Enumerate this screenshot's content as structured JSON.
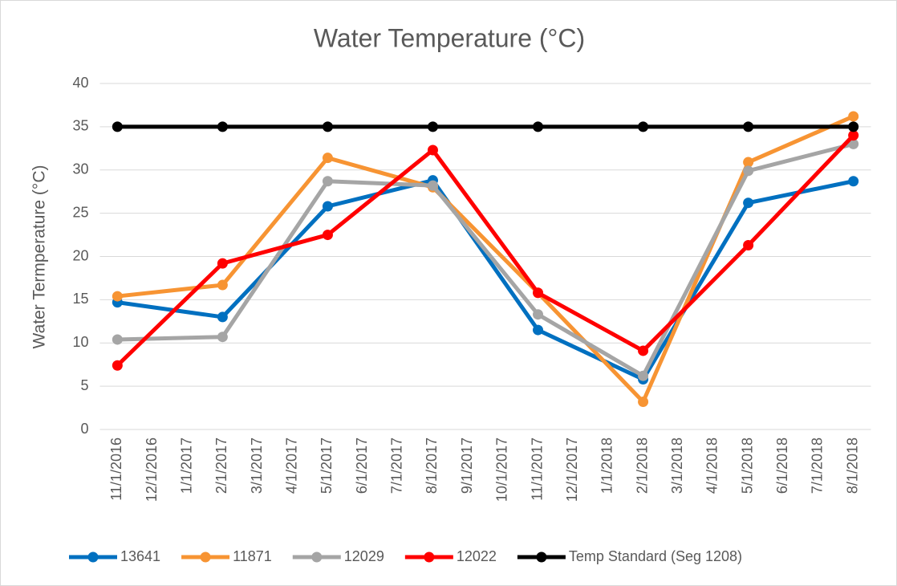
{
  "chart_data": {
    "type": "line",
    "title": "Water Temperature  (°C)",
    "y_label": "Water Termperature (°C)",
    "categories": [
      "11/1/2016",
      "12/1/2016",
      "1/1/2017",
      "2/1/2017",
      "3/1/2017",
      "4/1/2017",
      "5/1/2017",
      "6/1/2017",
      "7/1/2017",
      "8/1/2017",
      "9/1/2017",
      "10/1/2017",
      "11/1/2017",
      "12/1/2017",
      "1/1/2018",
      "2/1/2018",
      "3/1/2018",
      "4/1/2018",
      "5/1/2018",
      "6/1/2018",
      "7/1/2018",
      "8/1/2018"
    ],
    "series": [
      {
        "name": "13641",
        "color": "#0070c0",
        "x": [
          "11/1/2016",
          "2/1/2017",
          "5/1/2017",
          "8/1/2017",
          "11/1/2017",
          "2/1/2018",
          "5/1/2018",
          "8/1/2018"
        ],
        "values": [
          14.7,
          13.0,
          25.8,
          28.8,
          11.5,
          5.8,
          26.2,
          28.7
        ]
      },
      {
        "name": "11871",
        "color": "#f79433",
        "x": [
          "11/1/2016",
          "2/1/2017",
          "5/1/2017",
          "8/1/2017",
          "11/1/2017",
          "2/1/2018",
          "5/1/2018",
          "8/1/2018"
        ],
        "values": [
          15.4,
          16.7,
          31.4,
          28.0,
          15.8,
          3.2,
          30.9,
          36.2
        ]
      },
      {
        "name": "12029",
        "color": "#a5a5a5",
        "x": [
          "11/1/2016",
          "2/1/2017",
          "5/1/2017",
          "8/1/2017",
          "11/1/2017",
          "2/1/2018",
          "5/1/2018",
          "8/1/2018"
        ],
        "values": [
          10.4,
          10.7,
          28.7,
          28.2,
          13.3,
          6.2,
          29.9,
          33.0
        ]
      },
      {
        "name": "12022",
        "color": "#ff0000",
        "x": [
          "11/1/2016",
          "2/1/2017",
          "5/1/2017",
          "8/1/2017",
          "11/1/2017",
          "2/1/2018",
          "5/1/2018",
          "8/1/2018"
        ],
        "values": [
          7.4,
          19.2,
          22.5,
          32.3,
          15.8,
          9.1,
          21.3,
          34.0
        ]
      },
      {
        "name": "Temp Standard (Seg 1208)",
        "color": "#000000",
        "x": [
          "11/1/2016",
          "2/1/2017",
          "5/1/2017",
          "8/1/2017",
          "11/1/2017",
          "2/1/2018",
          "5/1/2018",
          "8/1/2018"
        ],
        "values": [
          35,
          35,
          35,
          35,
          35,
          35,
          35,
          35
        ]
      }
    ],
    "ylim": [
      0,
      40
    ],
    "yticks": [
      0,
      5,
      10,
      15,
      20,
      25,
      30,
      35,
      40
    ],
    "grid": true,
    "legend": "bottom"
  }
}
